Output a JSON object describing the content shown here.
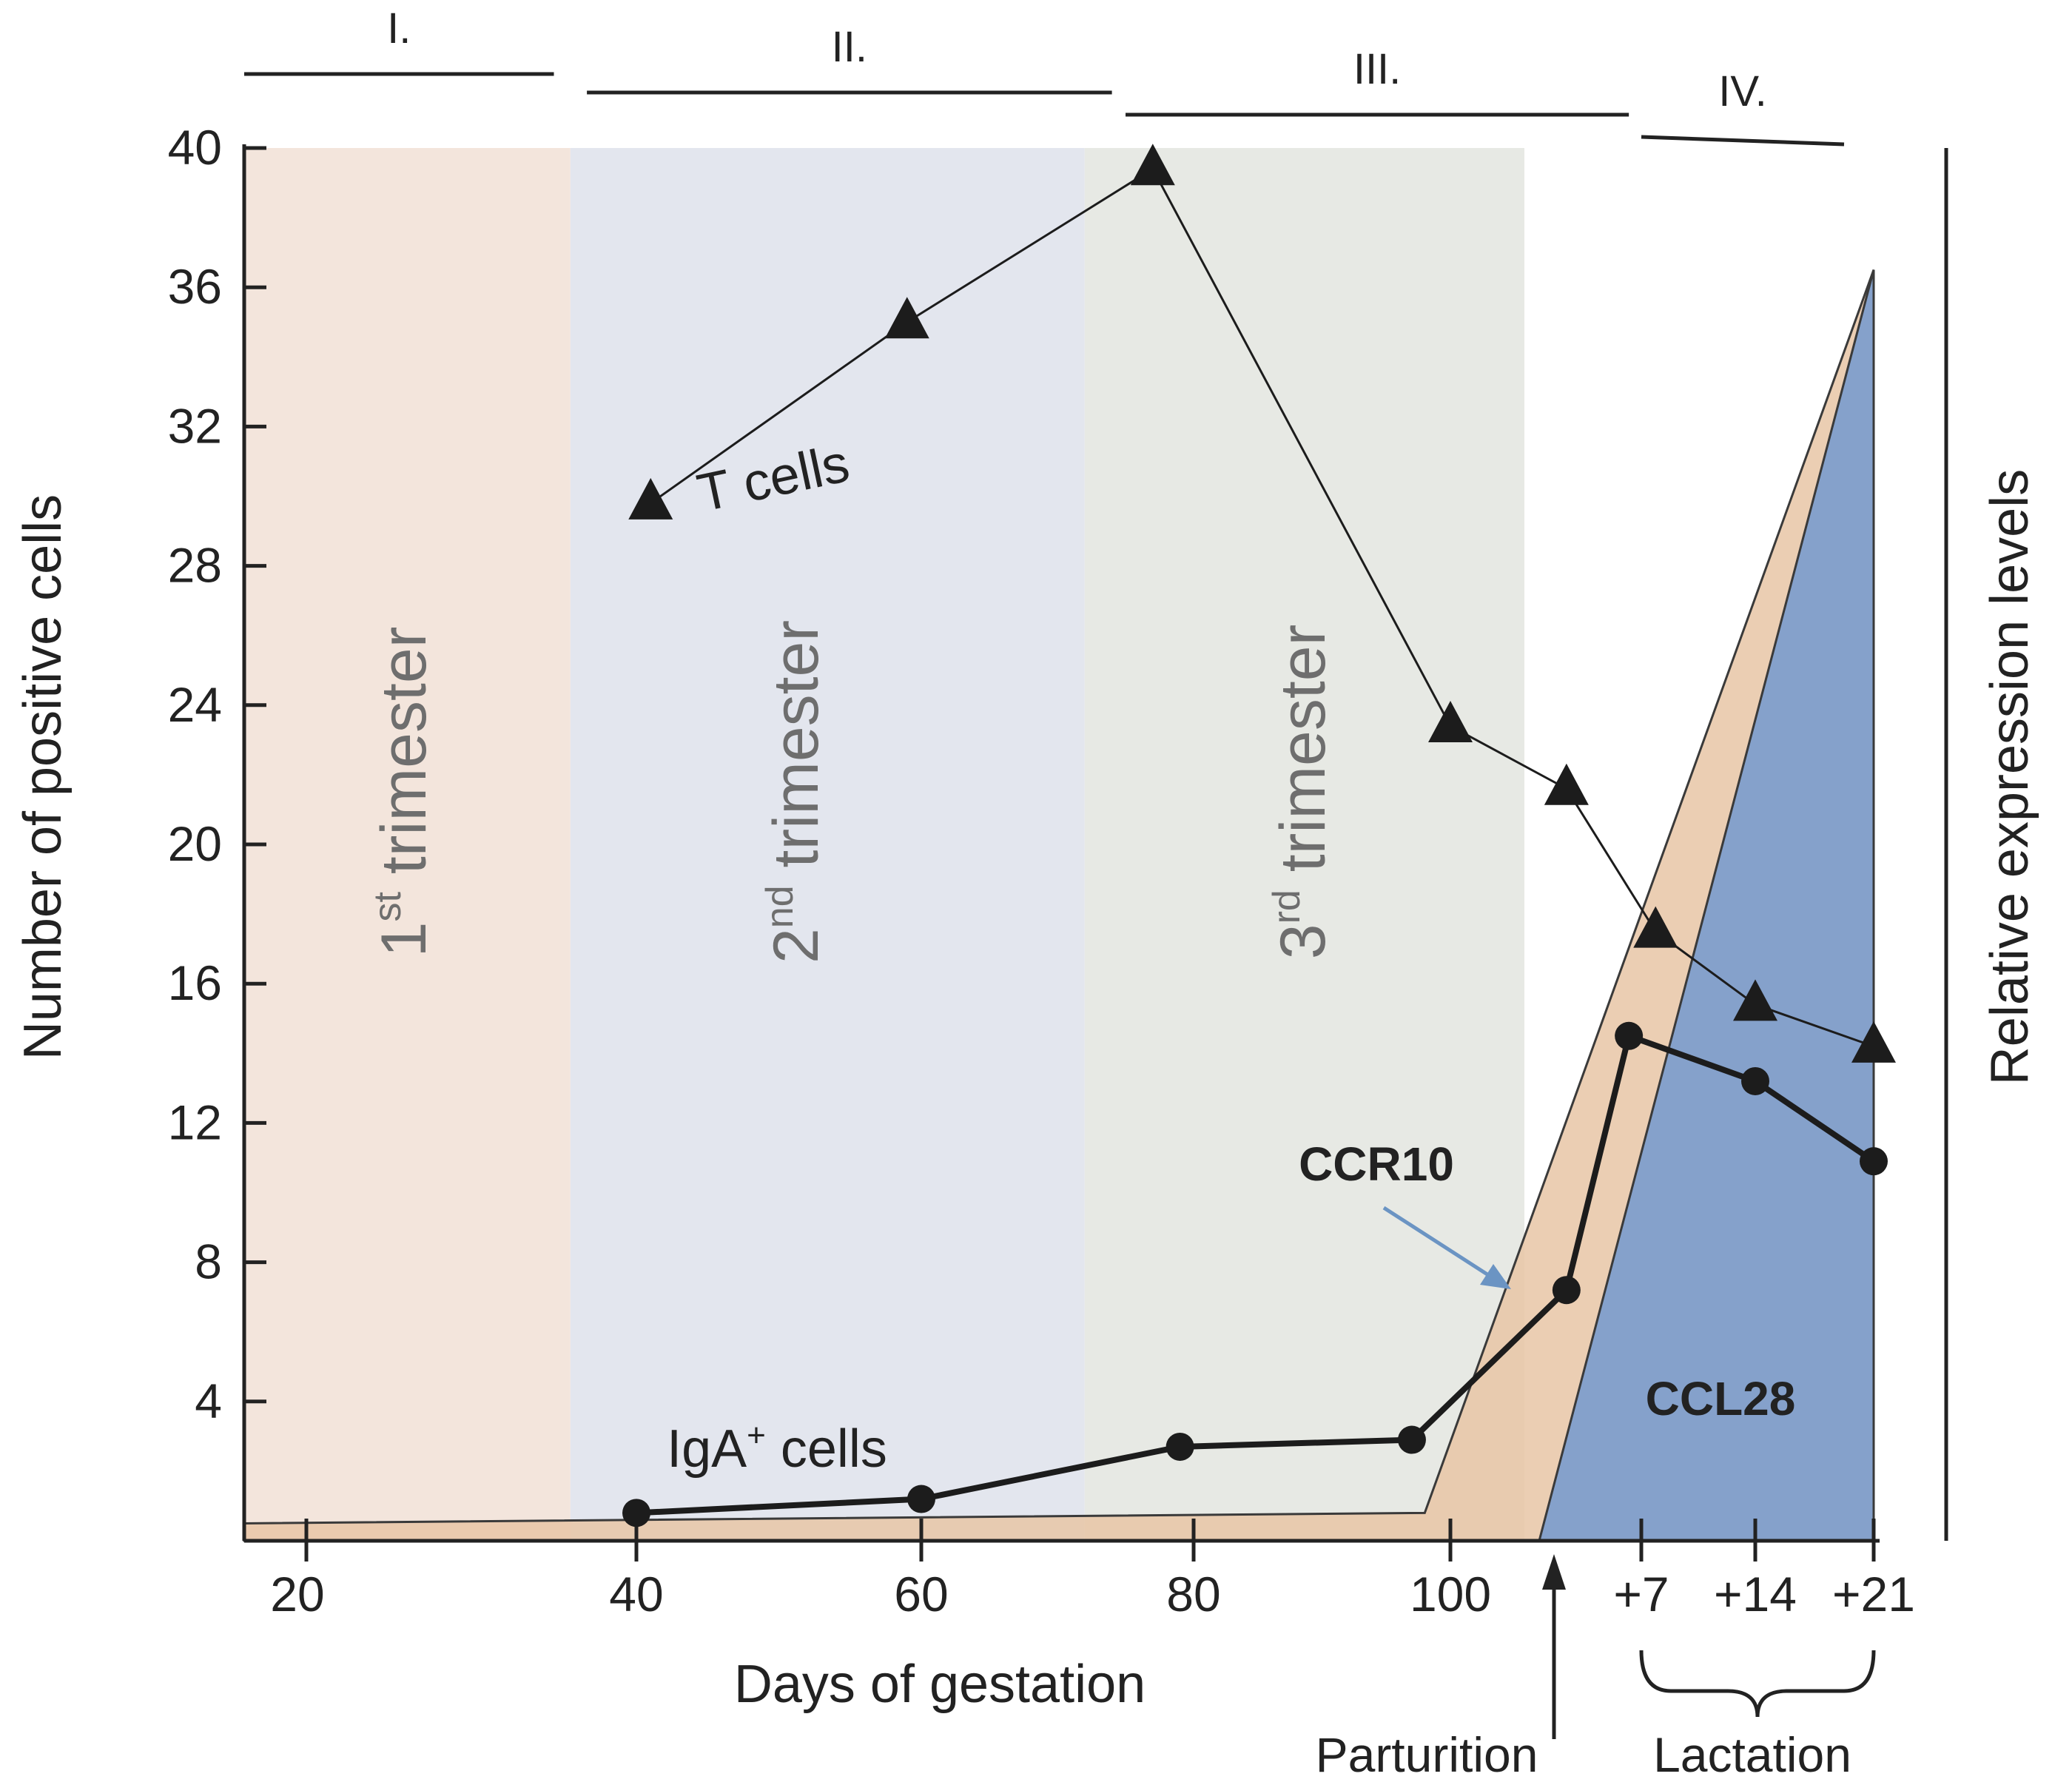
{
  "chart_data": {
    "type": "line",
    "title": "",
    "xlabel": "Days of gestation",
    "ylabel": "Number of positive cells",
    "y2label": "Relative expression levels",
    "ylim": [
      0,
      40
    ],
    "yticks": [
      4,
      8,
      12,
      16,
      20,
      24,
      28,
      32,
      36,
      40
    ],
    "ytick_labels": [
      "4",
      "8",
      "12",
      "16",
      "20",
      "24",
      "28",
      "32",
      "36",
      "40"
    ],
    "xtick_labels": [
      "20",
      "40",
      "60",
      "80",
      "100",
      "+7",
      "+14",
      "+21"
    ],
    "xtick_index": [
      20,
      40,
      60,
      80,
      100,
      114,
      122,
      130
    ],
    "x_axis_note": "Index scale: days 0–107 are days of gestation; parturition at index 107; +7/+14/+21 are days of lactation at index 114/122/130.",
    "periods": [
      {
        "label": "I.",
        "x_range": [
          15,
          35
        ]
      },
      {
        "label": "II.",
        "x_range": [
          37,
          74
        ]
      },
      {
        "label": "III.",
        "x_range": [
          75,
          113
        ]
      },
      {
        "label": "IV.",
        "x_range": [
          114,
          128
        ]
      }
    ],
    "trimesters": [
      {
        "name": "1st trimester",
        "num": "1",
        "suffix": "st",
        "word": " trimester",
        "x_range": [
          15,
          36
        ],
        "color": "#f3e5dc"
      },
      {
        "name": "2nd trimester",
        "num": "2",
        "suffix": "nd",
        "word": " trimester",
        "x_range": [
          36,
          72
        ],
        "color": "#e3e6ee"
      },
      {
        "name": "3rd trimester",
        "num": "3",
        "suffix": "rd",
        "word": " trimester",
        "x_range": [
          72,
          105
        ],
        "color": "#e7e9e4"
      }
    ],
    "series": [
      {
        "name": "T cells",
        "label": "T cells",
        "marker": "triangle",
        "points": [
          {
            "x": 41,
            "y": 29.8
          },
          {
            "x": 59,
            "y": 35.0
          },
          {
            "x": 77,
            "y": 39.4
          },
          {
            "x": 100,
            "y": 23.4
          },
          {
            "x": 108,
            "y": 21.6
          },
          {
            "x": 115,
            "y": 17.5
          },
          {
            "x": 122,
            "y": 15.4
          },
          {
            "x": 130,
            "y": 14.2
          }
        ]
      },
      {
        "name": "IgA+ cells",
        "label": "IgA",
        "label_sup": "+",
        "label_rest": " cells",
        "marker": "circle",
        "points": [
          {
            "x": 40,
            "y": 0.8
          },
          {
            "x": 60,
            "y": 1.2
          },
          {
            "x": 79,
            "y": 2.7
          },
          {
            "x": 97,
            "y": 2.9
          },
          {
            "x": 108,
            "y": 7.2
          },
          {
            "x": 113,
            "y": 14.5
          },
          {
            "x": 122,
            "y": 13.2
          },
          {
            "x": 130,
            "y": 10.9
          }
        ]
      }
    ],
    "areas": [
      {
        "name": "CCR10",
        "label": "CCR10",
        "color": "#e8c6a6",
        "outline": [
          {
            "x": 15,
            "y": 0.5
          },
          {
            "x": 98,
            "y": 0.8
          },
          {
            "x": 130,
            "y": 36.5
          },
          {
            "x": 130,
            "y": 0
          },
          {
            "x": 15,
            "y": 0
          }
        ]
      },
      {
        "name": "CCL28",
        "label": "CCL28",
        "color": "#7f9ecc",
        "outline": [
          {
            "x": 106,
            "y": 0
          },
          {
            "x": 130,
            "y": 36.5
          },
          {
            "x": 130,
            "y": 0
          }
        ]
      }
    ],
    "annotations": {
      "parturition": "Parturition",
      "parturition_x": 107,
      "lactation": "Lactation",
      "lactation_range": [
        114,
        130
      ]
    }
  }
}
